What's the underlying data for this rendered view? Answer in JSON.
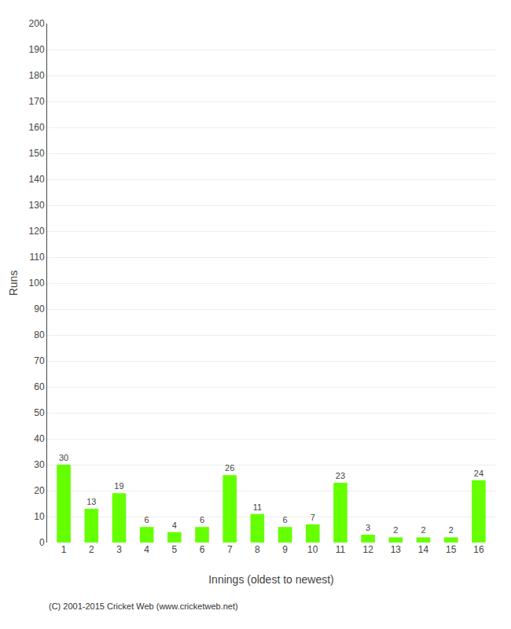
{
  "chart_data": {
    "type": "bar",
    "x_label": "Innings (oldest to newest)",
    "y_label": "Runs",
    "categories": [
      "1",
      "2",
      "3",
      "4",
      "5",
      "6",
      "7",
      "8",
      "9",
      "10",
      "11",
      "12",
      "13",
      "14",
      "15",
      "16"
    ],
    "values": [
      30,
      13,
      19,
      6,
      4,
      6,
      26,
      11,
      6,
      7,
      23,
      3,
      2,
      2,
      2,
      24
    ],
    "color": "#66ff00",
    "ylim": [
      0,
      200
    ],
    "yticks": [
      0,
      10,
      20,
      30,
      40,
      50,
      60,
      70,
      80,
      90,
      100,
      110,
      120,
      130,
      140,
      150,
      160,
      170,
      180,
      190,
      200
    ],
    "grid": true,
    "data_labels": true,
    "annotations": [
      "(C) 2001-2015 Cricket Web (www.cricketweb.net)"
    ]
  }
}
